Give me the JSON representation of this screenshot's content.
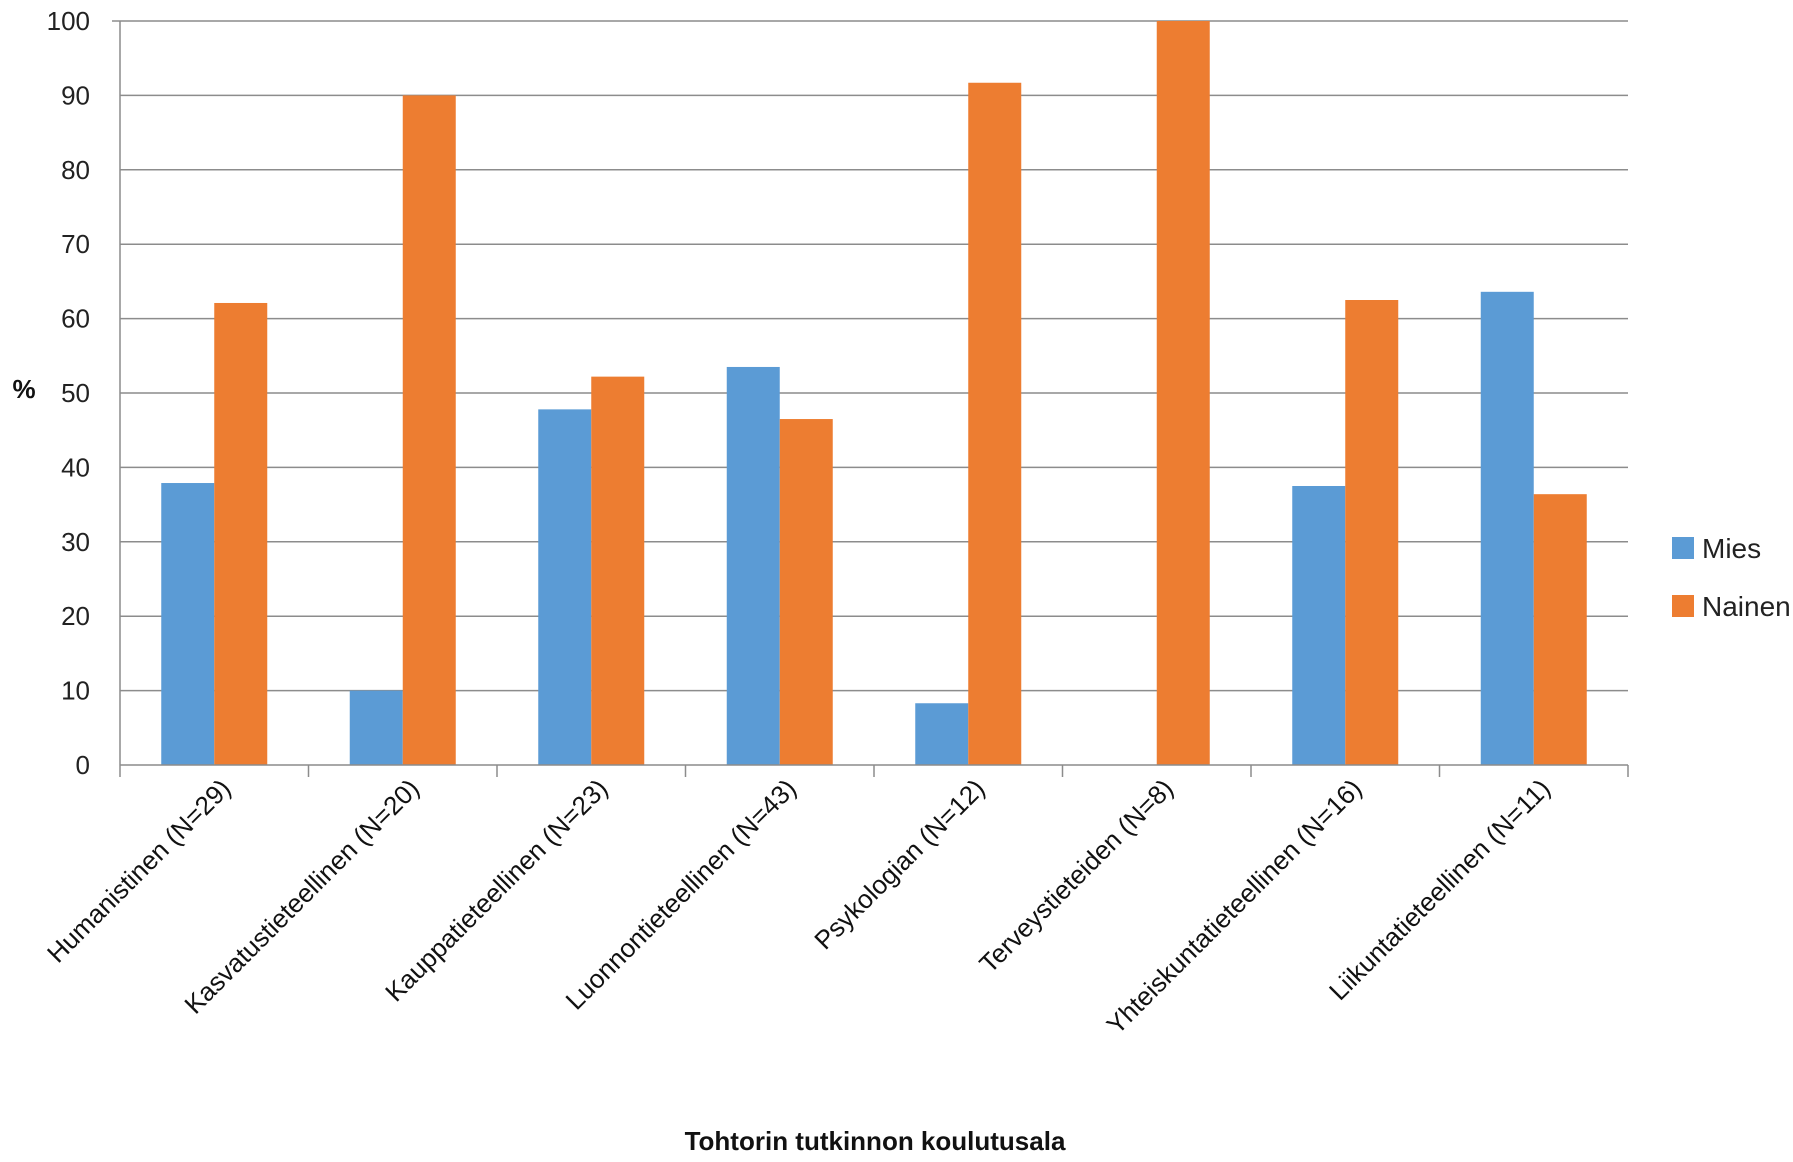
{
  "chart_data": {
    "type": "bar",
    "title": "",
    "xlabel": "Tohtorin tutkinnon koulutusala",
    "ylabel": "%",
    "ylim": [
      0,
      100
    ],
    "yticks": [
      0,
      10,
      20,
      30,
      40,
      50,
      60,
      70,
      80,
      90,
      100
    ],
    "grid": true,
    "legend_position": "right",
    "categories": [
      "Humanistinen (N=29)",
      "Kasvatustieteellinen (N=20)",
      "Kauppatieteellinen (N=23)",
      "Luonnontieteellinen (N=43)",
      "Psykologian (N=12)",
      "Terveystieteiden (N=8)",
      "Yhteiskuntatieteellinen (N=16)",
      "Liikuntatieteellinen (N=11)"
    ],
    "series": [
      {
        "name": "Mies",
        "color": "#5B9BD5",
        "values": [
          37.9,
          10.0,
          47.8,
          53.5,
          8.3,
          0.0,
          37.5,
          63.6
        ]
      },
      {
        "name": "Nainen",
        "color": "#ED7D31",
        "values": [
          62.1,
          90.0,
          52.2,
          46.5,
          91.7,
          100.0,
          62.5,
          36.4
        ]
      }
    ]
  }
}
